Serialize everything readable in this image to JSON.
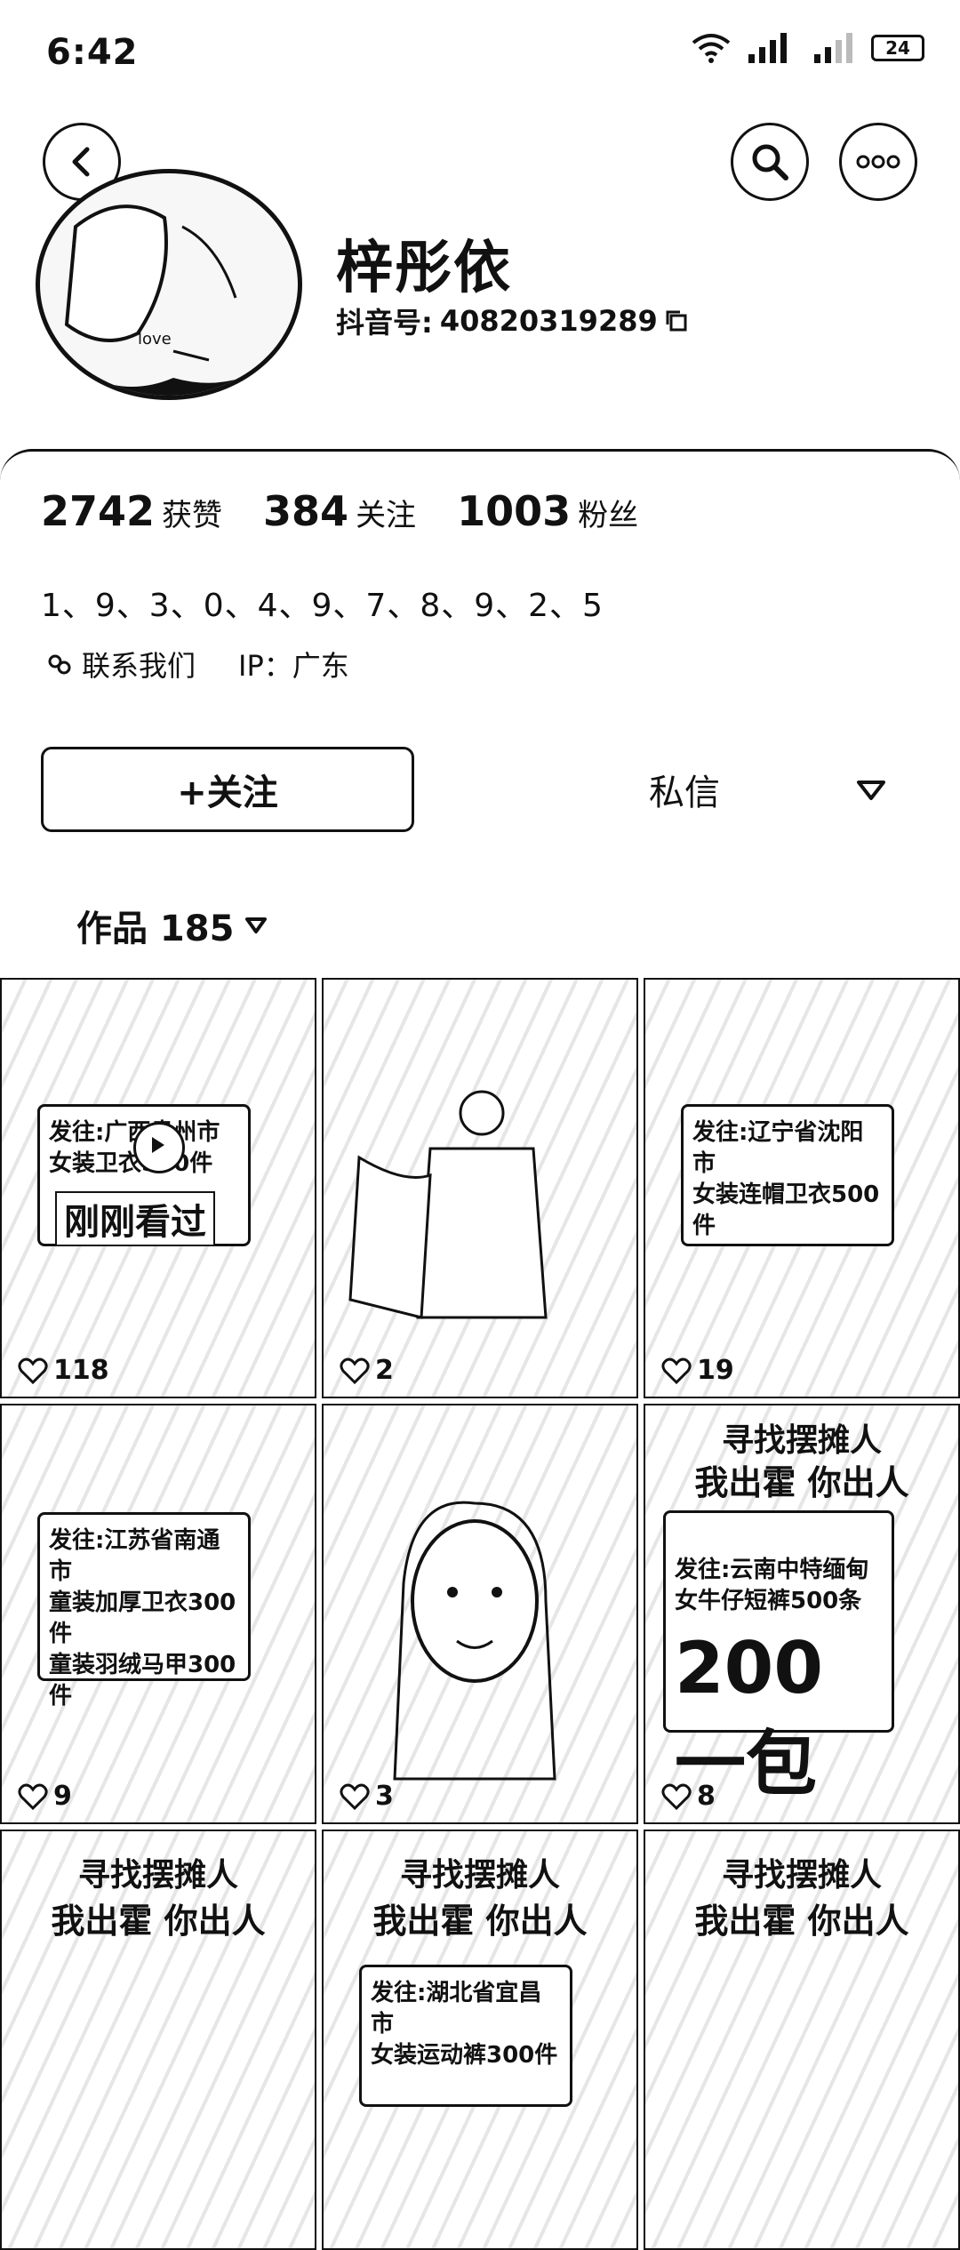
{
  "status": {
    "time": "6:42",
    "battery": "24"
  },
  "profile": {
    "name": "梓彤依",
    "id_label": "抖音号:",
    "id_value": "40820319289",
    "avatar_text": "love"
  },
  "stats": [
    {
      "value": "2742",
      "label": "获赞"
    },
    {
      "value": "384",
      "label": "关注"
    },
    {
      "value": "1003",
      "label": "粉丝"
    }
  ],
  "bio": "1、9、3、0、4、9、7、8、9、2、5",
  "contact": {
    "label": "联系我们",
    "ip": "IP：广东"
  },
  "actions": {
    "follow": "+关注",
    "message": "私信"
  },
  "tabs": {
    "works_label": "作品 185"
  },
  "videos": [
    {
      "sign": "发往:广西贵州市\n女装卫衣500件",
      "likes": "118",
      "overlay": "刚刚看过",
      "play": true
    },
    {
      "sign": "",
      "likes": "2"
    },
    {
      "sign": "发往:辽宁省沈阳市\n女装连帽卫衣500件",
      "likes": "19"
    },
    {
      "sign": "发往:江苏省南通市\n童装加厚卫衣300件\n童装羽绒马甲300件",
      "likes": "9"
    },
    {
      "sign": "",
      "likes": "3"
    },
    {
      "banner": "寻找摆摊人",
      "banner2": "我出霍 你出人",
      "sign": "发往:云南中特缅甸\n女牛仔短裤500条",
      "big": "200一包",
      "likes": "8"
    },
    {
      "banner": "寻找摆摊人",
      "banner2": "我出霍 你出人"
    },
    {
      "banner": "寻找摆摊人",
      "banner2": "我出霍 你出人",
      "sign": "发往:湖北省宜昌市\n女装运动裤300件"
    },
    {
      "banner": "寻找摆摊人",
      "banner2": "我出霍 你出人"
    }
  ]
}
